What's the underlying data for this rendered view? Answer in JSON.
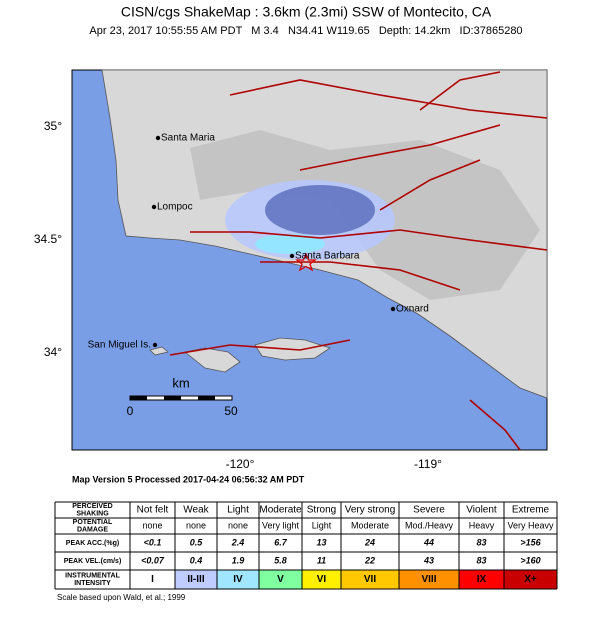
{
  "header": {
    "title": "CISN/cgs ShakeMap : 3.6km (2.3mi) SSW of Montecito, CA",
    "subtitle": "Apr 23, 2017 10:55:55 AM PDT   M 3.4   N34.41 W119.65   Depth: 14.2km   ID:37865280"
  },
  "map": {
    "lat_labels": [
      "35°",
      "34.5°",
      "34°"
    ],
    "lon_labels": [
      "-120°",
      "-119°"
    ],
    "places": [
      "Santa Maria",
      "Lompoc",
      "Santa Barbara",
      "Oxnard",
      "San Miguel Is."
    ],
    "scale": {
      "unit": "km",
      "start": "0",
      "end": "50"
    }
  },
  "version": "Map Version 5 Processed 2017-04-24 06:56:32 AM PDT",
  "table": {
    "rows": [
      {
        "label": [
          "PERCEIVED",
          "SHAKING"
        ],
        "cells": [
          "Not felt",
          "Weak",
          "Light",
          "Moderate",
          "Strong",
          "Very strong",
          "Severe",
          "Violent",
          "Extreme"
        ]
      },
      {
        "label": [
          "POTENTIAL",
          "DAMAGE"
        ],
        "cells": [
          "none",
          "none",
          "none",
          "Very light",
          "Light",
          "Moderate",
          "Mod./Heavy",
          "Heavy",
          "Very Heavy"
        ]
      },
      {
        "label": [
          "PEAK ACC.(%g)"
        ],
        "cells": [
          "<0.1",
          "0.5",
          "2.4",
          "6.7",
          "13",
          "24",
          "44",
          "83",
          ">156"
        ]
      },
      {
        "label": [
          "PEAK VEL.(cm/s)"
        ],
        "cells": [
          "<0.07",
          "0.4",
          "1.9",
          "5.8",
          "11",
          "22",
          "43",
          "83",
          ">160"
        ]
      },
      {
        "label": [
          "INSTRUMENTAL",
          "INTENSITY"
        ],
        "cells": [
          "I",
          "II-III",
          "IV",
          "V",
          "VI",
          "VII",
          "VIII",
          "IX",
          "X+"
        ]
      }
    ],
    "intensity_colors": [
      "#ffffff",
      "#bfccff",
      "#a0e6ff",
      "#80ffa0",
      "#fff000",
      "#ffc800",
      "#ff9100",
      "#ff0000",
      "#c80000"
    ]
  },
  "footnote": "Scale based upon Wald, et al.; 1999"
}
